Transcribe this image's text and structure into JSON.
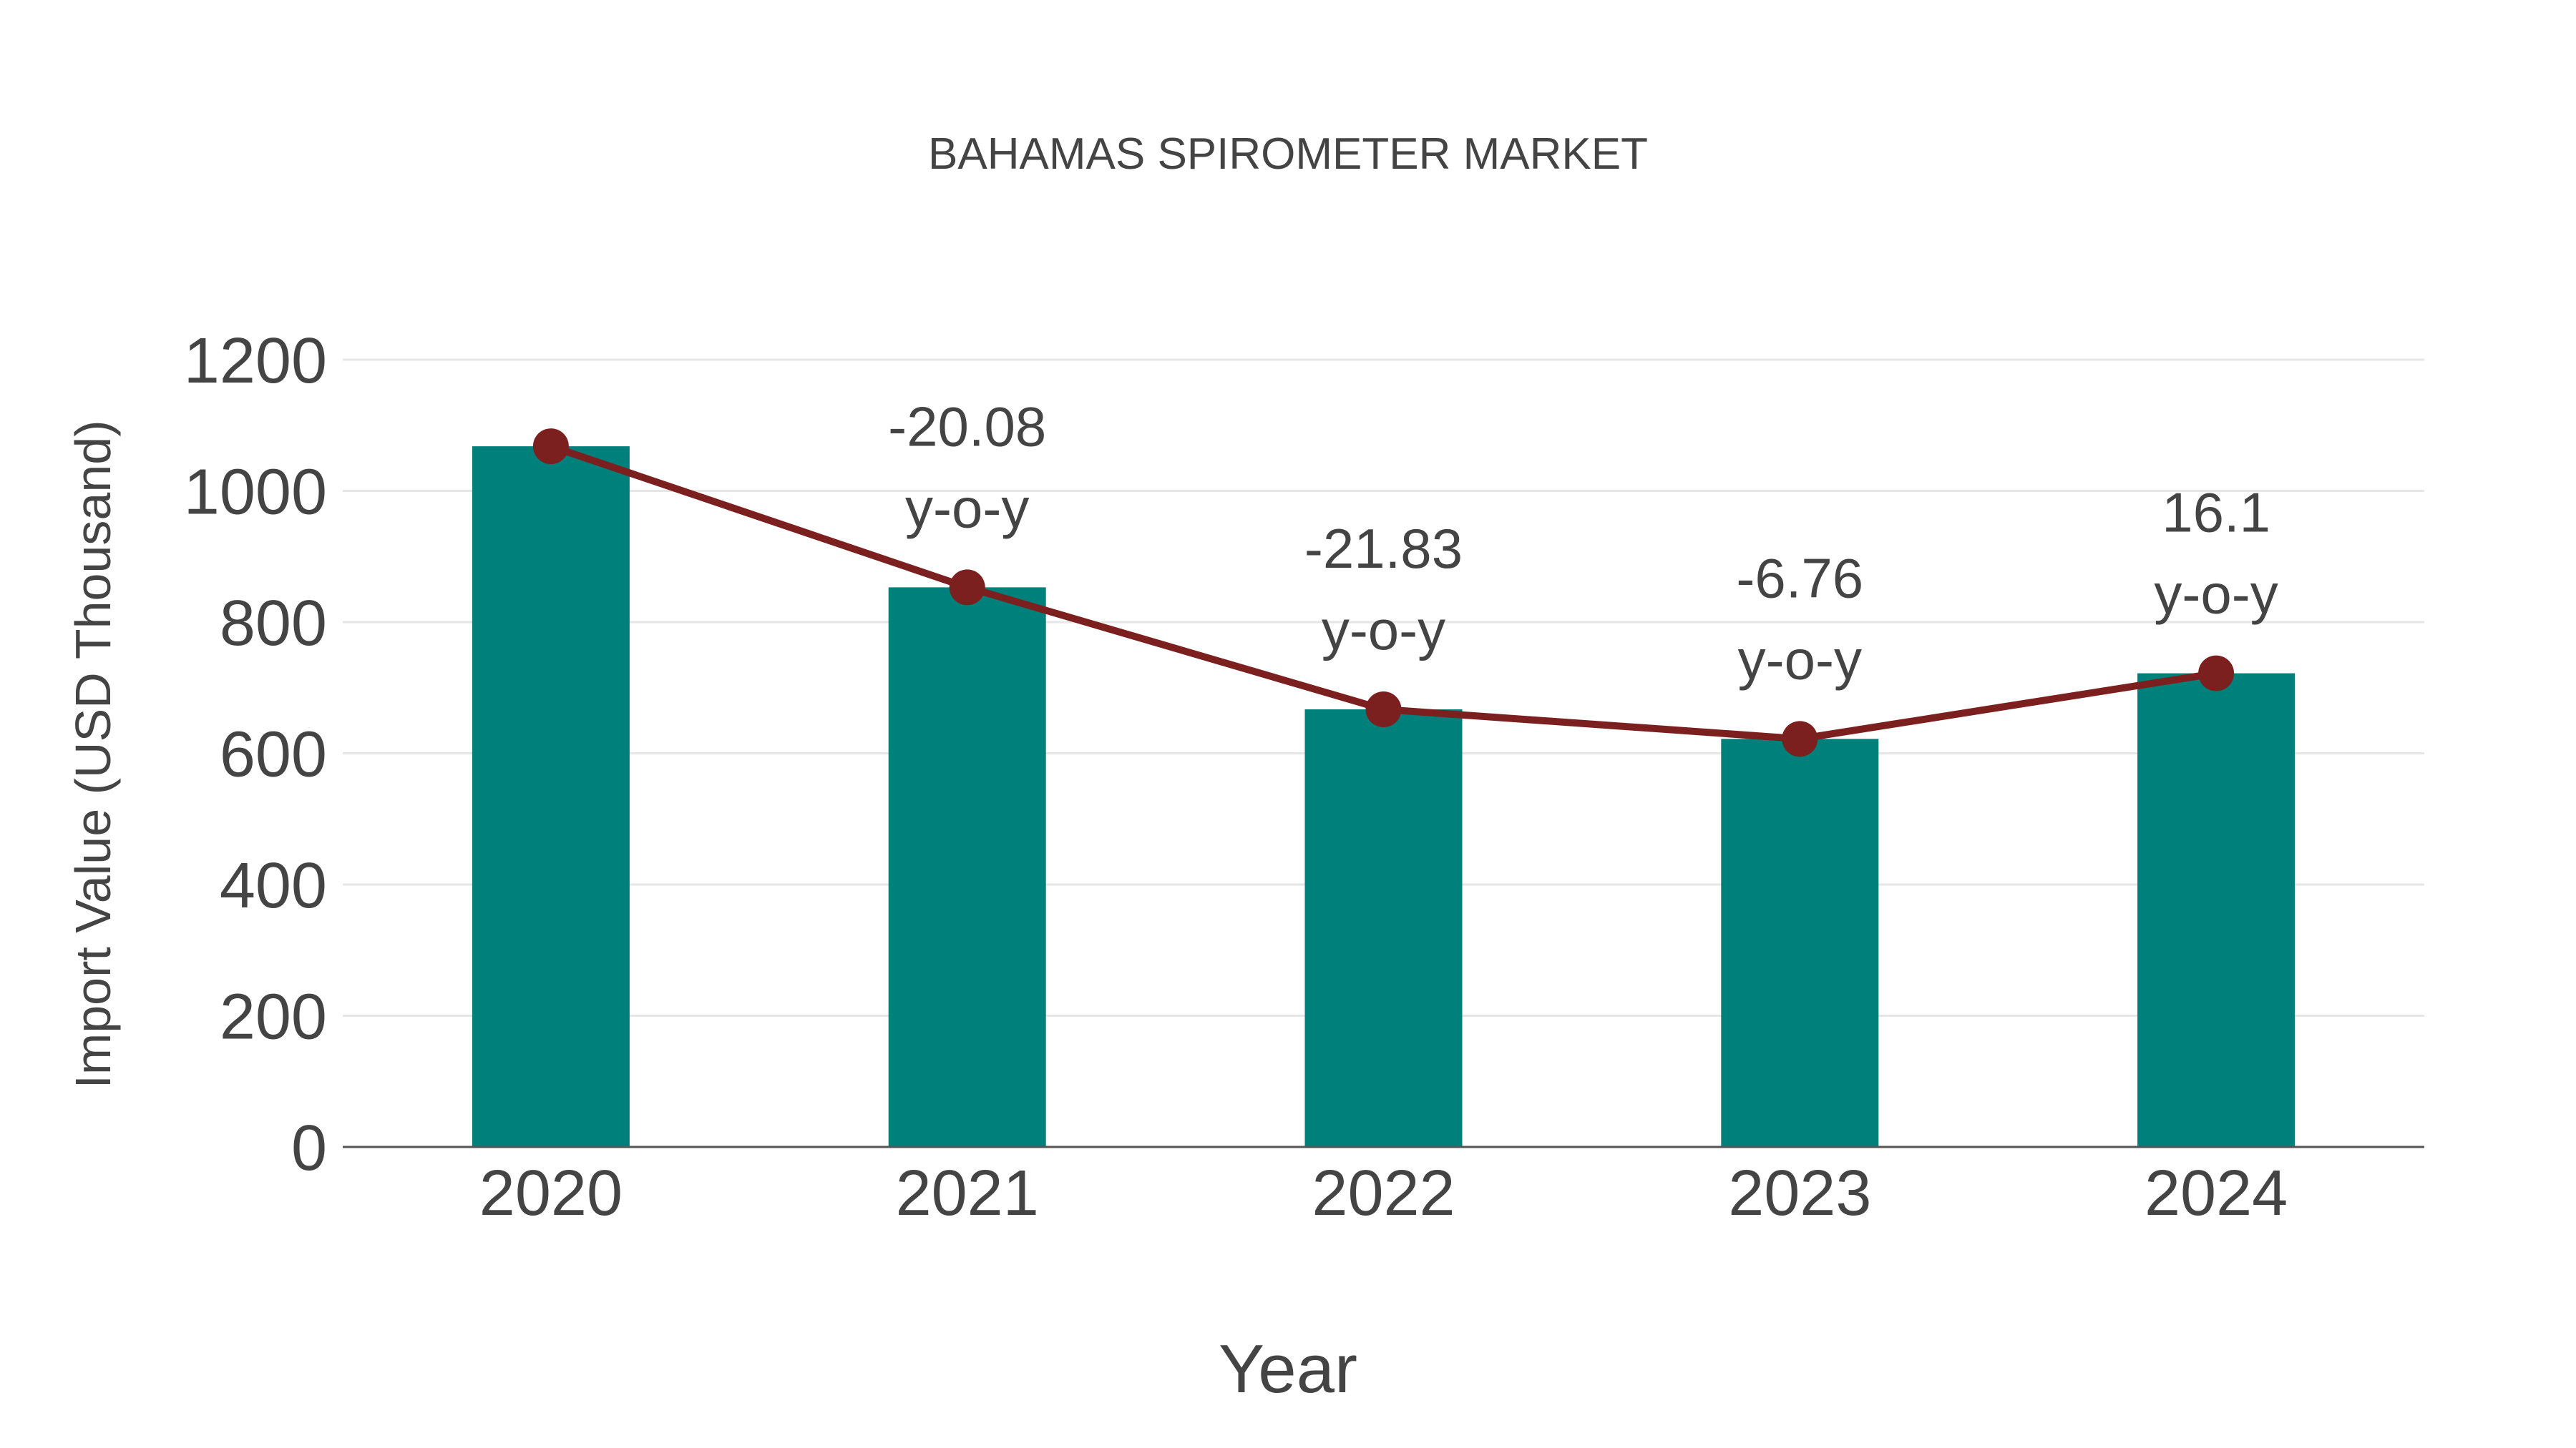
{
  "title": "BAHAMAS SPIROMETER MARKET",
  "colors": {
    "bar": "#00807b",
    "line": "#7b1f1f",
    "grid": "#e6e6e6",
    "axis": "#444444",
    "text": "#444444"
  },
  "chart_data": {
    "type": "bar",
    "title": "BAHAMAS SPIROMETER MARKET",
    "xlabel": "Year",
    "ylabel": "Import Value (USD Thousand)",
    "categories": [
      "2020",
      "2021",
      "2022",
      "2023",
      "2024"
    ],
    "series": [
      {
        "name": "Import Value",
        "type": "bar",
        "values": [
          1068,
          853,
          667,
          622,
          722
        ]
      },
      {
        "name": "Import Value trend",
        "type": "line",
        "values": [
          1068,
          853,
          667,
          622,
          722
        ]
      }
    ],
    "annotations": [
      {
        "year": "2021",
        "value": "-20.08",
        "suffix": "y-o-y"
      },
      {
        "year": "2022",
        "value": "-21.83",
        "suffix": "y-o-y"
      },
      {
        "year": "2023",
        "value": "-6.76",
        "suffix": "y-o-y"
      },
      {
        "year": "2024",
        "value": "16.1",
        "suffix": "y-o-y"
      }
    ],
    "yticks": [
      0,
      200,
      400,
      600,
      800,
      1000,
      1200
    ],
    "ylim": [
      0,
      1200
    ],
    "grid": true,
    "legend": "none"
  }
}
